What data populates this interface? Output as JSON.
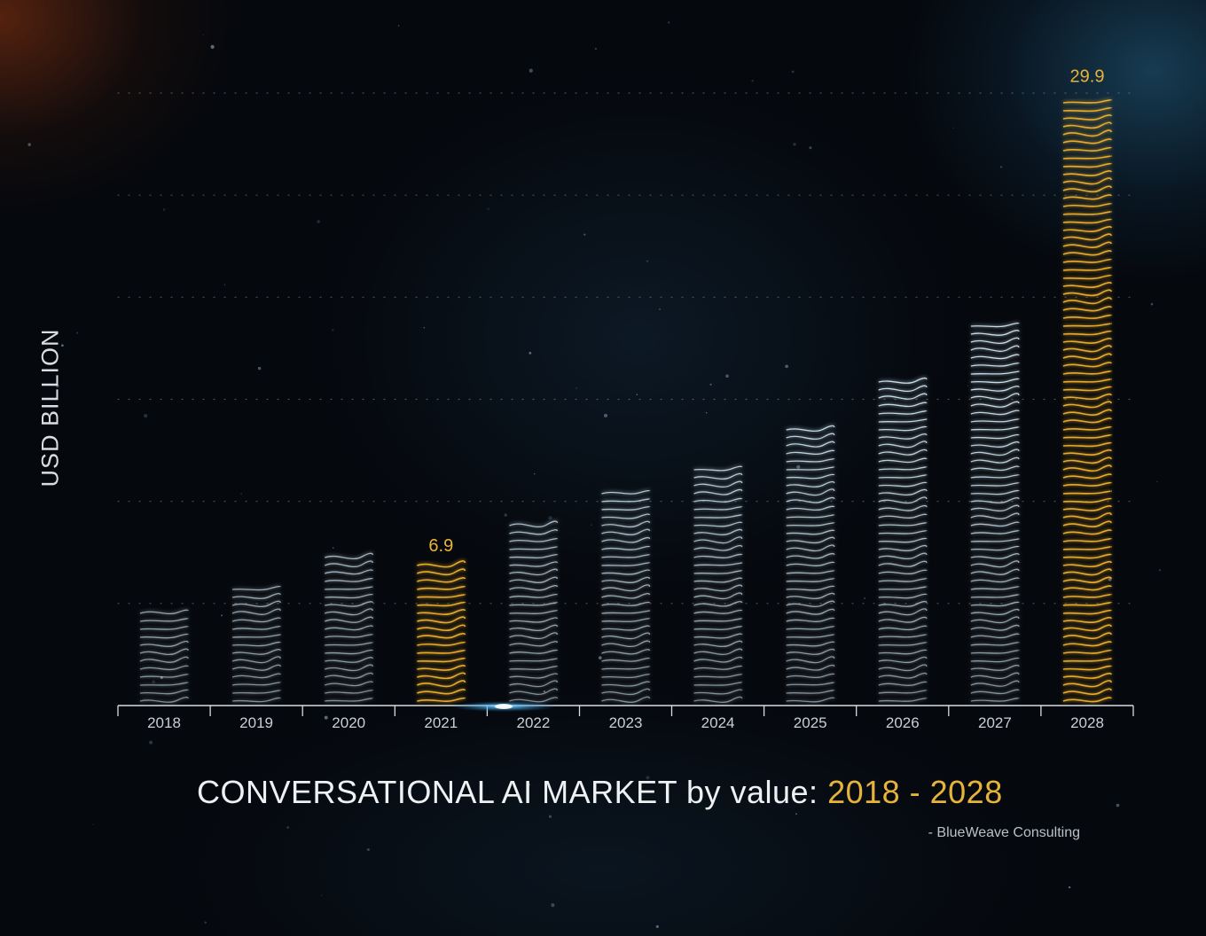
{
  "chart_data": {
    "type": "bar",
    "ylabel": "USD BILLION",
    "title_main": "CONVERSATIONAL AI MARKET by value:",
    "title_accent": "2018 - 2028",
    "source": "- BlueWeave Consulting",
    "categories": [
      "2018",
      "2019",
      "2020",
      "2021",
      "2022",
      "2023",
      "2024",
      "2025",
      "2026",
      "2027",
      "2028"
    ],
    "values": [
      4.9,
      5.8,
      7.3,
      6.9,
      9.1,
      10.4,
      11.6,
      13.6,
      16.0,
      18.8,
      29.9
    ],
    "highlighted": [
      "2021",
      "2028"
    ],
    "data_labels": {
      "2021": "6.9",
      "2028": "29.9"
    },
    "ylim": [
      0,
      30
    ],
    "grid": true,
    "colors": {
      "bar": "#cfe6f2",
      "highlight": "#f0b02a",
      "label_highlight": "#e8b33a",
      "axis": "#d8dde2",
      "text": "#eef1f4",
      "tick_text": "#c9cfd6"
    }
  }
}
